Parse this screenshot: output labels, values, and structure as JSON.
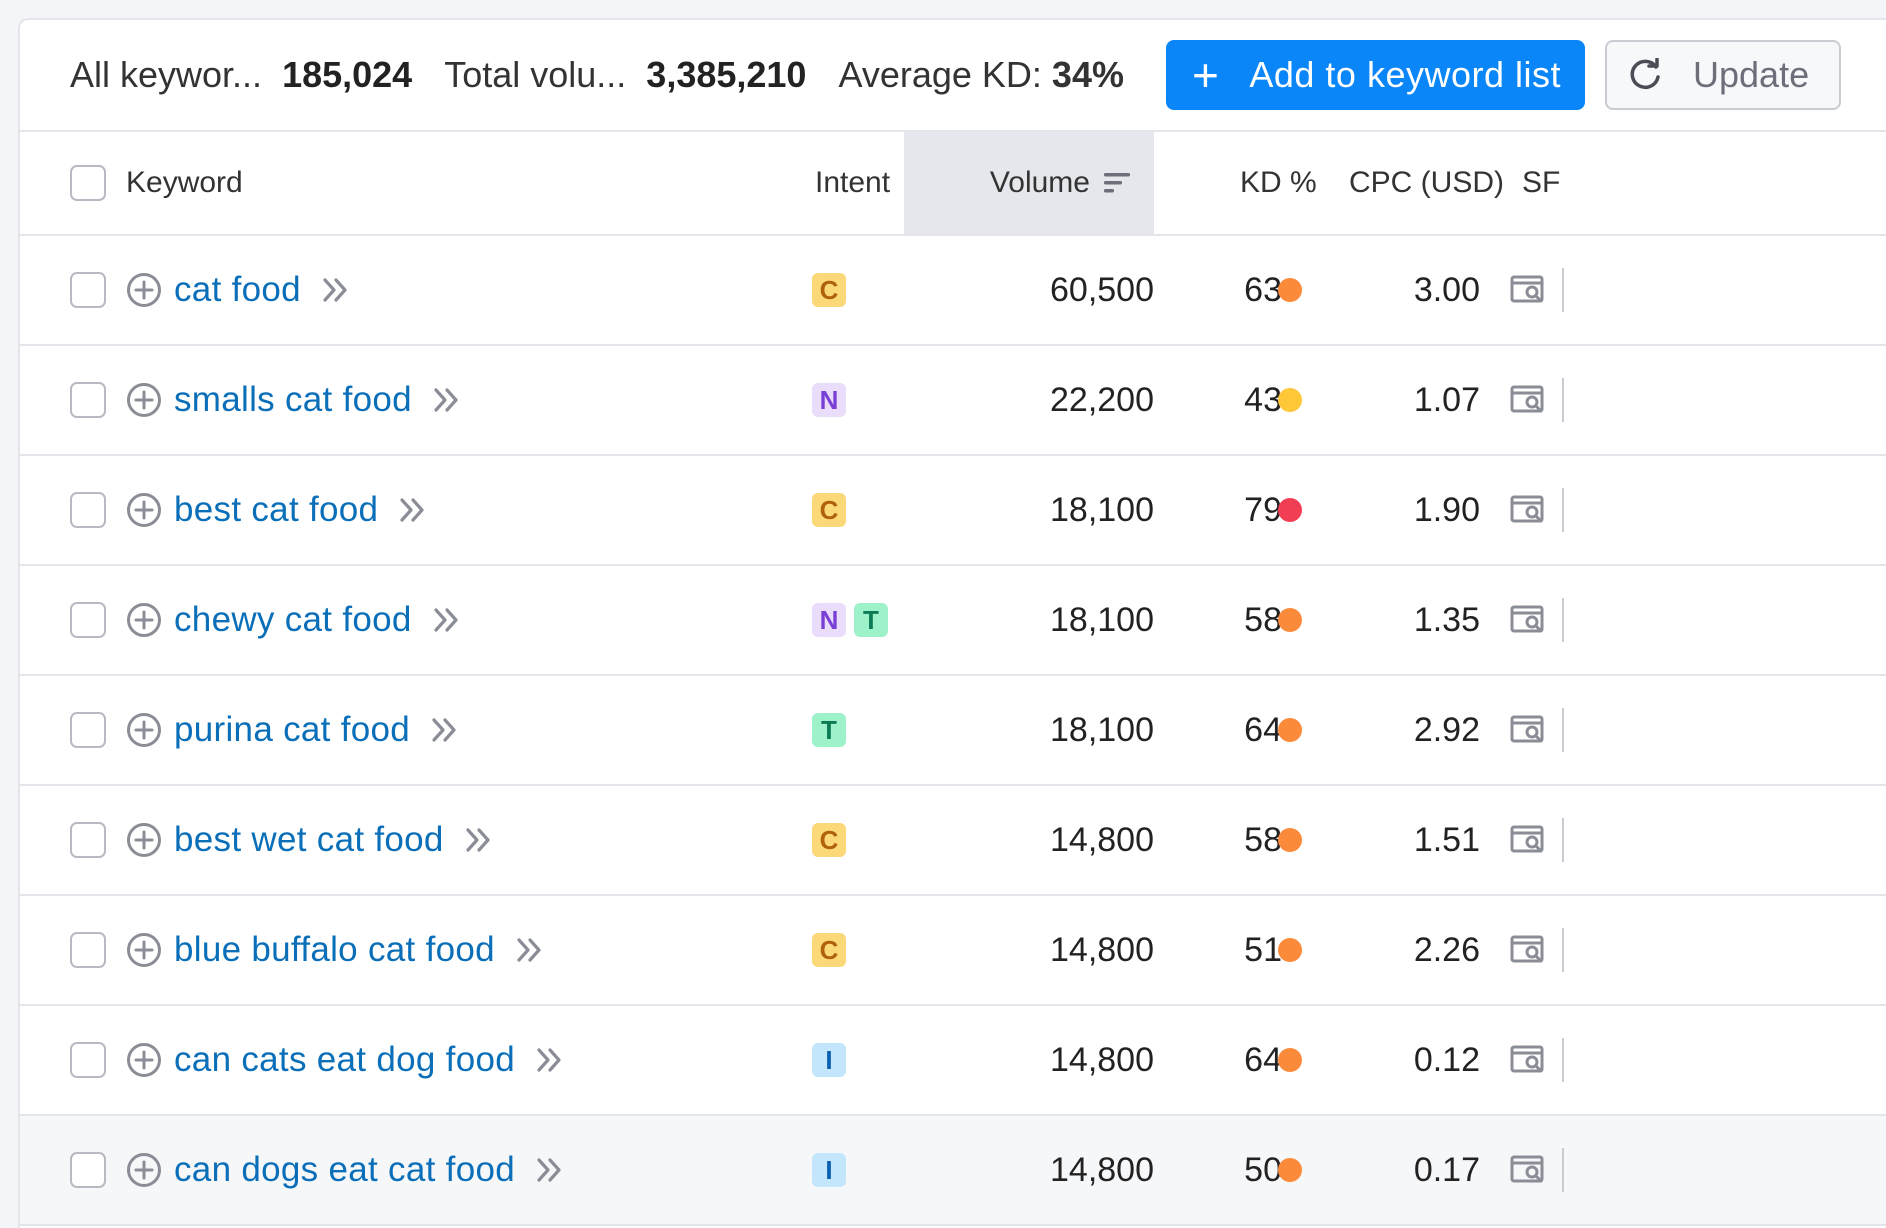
{
  "toolbar": {
    "all_keywords_label": "All keywor...",
    "all_keywords_value": "185,024",
    "total_volume_label": "Total volu...",
    "total_volume_value": "3,385,210",
    "avg_kd_label": "Average KD:",
    "avg_kd_value": "34%",
    "add_button": "Add to keyword list",
    "update_button": "Update"
  },
  "columns": {
    "keyword": "Keyword",
    "intent": "Intent",
    "volume": "Volume",
    "kd": "KD %",
    "cpc": "CPC (USD)",
    "sf": "SF"
  },
  "colors": {
    "kd_orange": "#fb8b3a",
    "kd_yellow": "#fdc738",
    "kd_red": "#f23e54",
    "link": "#0a6fb8",
    "primary_button": "#0b86f8"
  },
  "rows": [
    {
      "keyword": "cat food",
      "intents": [
        "C"
      ],
      "volume": "60,500",
      "kd": "63",
      "kd_color": "#fb8b3a",
      "cpc": "3.00"
    },
    {
      "keyword": "smalls cat food",
      "intents": [
        "N"
      ],
      "volume": "22,200",
      "kd": "43",
      "kd_color": "#fdc738",
      "cpc": "1.07"
    },
    {
      "keyword": "best cat food",
      "intents": [
        "C"
      ],
      "volume": "18,100",
      "kd": "79",
      "kd_color": "#f23e54",
      "cpc": "1.90"
    },
    {
      "keyword": "chewy cat food",
      "intents": [
        "N",
        "T"
      ],
      "volume": "18,100",
      "kd": "58",
      "kd_color": "#fb8b3a",
      "cpc": "1.35"
    },
    {
      "keyword": "purina cat food",
      "intents": [
        "T"
      ],
      "volume": "18,100",
      "kd": "64",
      "kd_color": "#fb8b3a",
      "cpc": "2.92"
    },
    {
      "keyword": "best wet cat food",
      "intents": [
        "C"
      ],
      "volume": "14,800",
      "kd": "58",
      "kd_color": "#fb8b3a",
      "cpc": "1.51"
    },
    {
      "keyword": "blue buffalo cat food",
      "intents": [
        "C"
      ],
      "volume": "14,800",
      "kd": "51",
      "kd_color": "#fb8b3a",
      "cpc": "2.26"
    },
    {
      "keyword": "can cats eat dog food",
      "intents": [
        "I"
      ],
      "volume": "14,800",
      "kd": "64",
      "kd_color": "#fb8b3a",
      "cpc": "0.12"
    },
    {
      "keyword": "can dogs eat cat food",
      "intents": [
        "I"
      ],
      "volume": "14,800",
      "kd": "50",
      "kd_color": "#fb8b3a",
      "cpc": "0.17"
    }
  ]
}
